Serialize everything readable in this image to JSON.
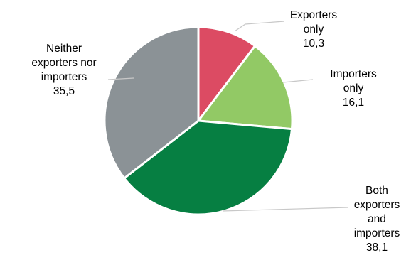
{
  "chart_data": {
    "type": "pie",
    "title": "",
    "legend": "none",
    "slices": [
      {
        "name": "Exporters only",
        "label_lines": [
          "Exporters",
          "only"
        ],
        "value_label": "10,3",
        "value": 10.3,
        "color": "#dc4b63"
      },
      {
        "name": "Importers only",
        "label_lines": [
          "Importers",
          "only"
        ],
        "value_label": "16,1",
        "value": 16.1,
        "color": "#92c965"
      },
      {
        "name": "Both exporters and importers",
        "label_lines": [
          "Both",
          "exporters",
          "and",
          "importers"
        ],
        "value_label": "38,1",
        "value": 38.1,
        "color": "#067f42"
      },
      {
        "name": "Neither exporters nor importers",
        "label_lines": [
          "Neither",
          "exporters nor",
          "importers"
        ],
        "value_label": "35,5",
        "value": 35.5,
        "color": "#8b9296"
      }
    ]
  }
}
